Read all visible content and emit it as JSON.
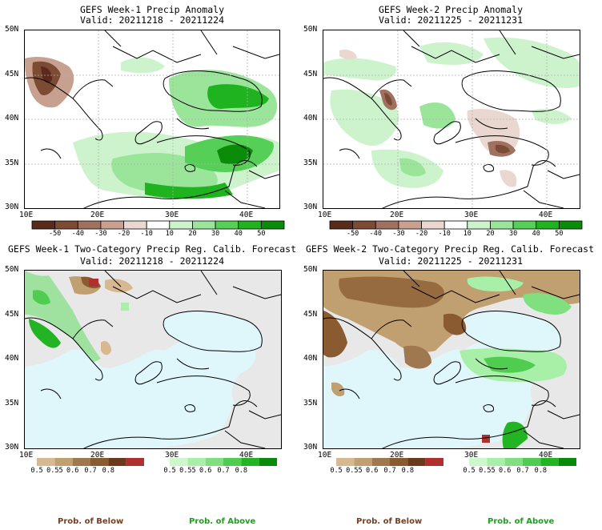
{
  "panels": [
    {
      "id": "w1_anom",
      "title": "GEFS Week-1 Precip Anomaly",
      "valid": "Valid: 20211218 - 20211224",
      "lat_ticks": [
        "50N",
        "45N",
        "40N",
        "35N",
        "30N"
      ],
      "lon_ticks": [
        "10E",
        "20E",
        "30E",
        "40E"
      ],
      "colorbar": {
        "type": "anomaly",
        "labels": [
          "-50",
          "-40",
          "-30",
          "-20",
          "-10",
          "10",
          "20",
          "30",
          "40",
          "50"
        ],
        "colors": [
          "#5a2a1a",
          "#7d4a33",
          "#a07060",
          "#c8a090",
          "#ead8d0",
          "#ffffff",
          "#cdf3cd",
          "#9be59b",
          "#55cf55",
          "#1fb41f",
          "#0a8c0a"
        ]
      }
    },
    {
      "id": "w2_anom",
      "title": "GEFS Week-2 Precip Anomaly",
      "valid": "Valid: 20211225 - 20211231",
      "lat_ticks": [
        "50N",
        "45N",
        "40N",
        "35N",
        "30N"
      ],
      "lon_ticks": [
        "10E",
        "20E",
        "30E",
        "40E"
      ],
      "colorbar": {
        "type": "anomaly",
        "labels": [
          "-50",
          "-40",
          "-30",
          "-20",
          "-10",
          "10",
          "20",
          "30",
          "40",
          "50"
        ],
        "colors": [
          "#5a2a1a",
          "#7d4a33",
          "#a07060",
          "#c8a090",
          "#ead8d0",
          "#ffffff",
          "#cdf3cd",
          "#9be59b",
          "#55cf55",
          "#1fb41f",
          "#0a8c0a"
        ]
      }
    },
    {
      "id": "w1_prob",
      "title": "GEFS Week-1 Two-Category Precip Reg. Calib. Forecast",
      "valid": "Valid: 20211218 - 20211224",
      "lat_ticks": [
        "50N",
        "45N",
        "40N",
        "35N",
        "30N"
      ],
      "lon_ticks": [
        "10E",
        "20E",
        "30E",
        "40E"
      ],
      "below_bar": {
        "labels": [
          "0.5",
          "0.55",
          "0.6",
          "0.7",
          "0.8"
        ],
        "colors": [
          "#d8b890",
          "#c0a070",
          "#a07850",
          "#8a5a30",
          "#6b3a1c",
          "#b03030"
        ]
      },
      "above_bar": {
        "labels": [
          "0.5",
          "0.55",
          "0.6",
          "0.7",
          "0.8"
        ],
        "colors": [
          "#ccf8cc",
          "#a8f0a8",
          "#80e080",
          "#50cc50",
          "#22b422",
          "#0a8a0a"
        ]
      },
      "below_label": "Prob. of Below",
      "above_label": "Prob. of Above"
    },
    {
      "id": "w2_prob",
      "title": "GEFS Week-2 Two-Category Precip Reg. Calib. Forecast",
      "valid": "Valid: 20211225 - 20211231",
      "lat_ticks": [
        "50N",
        "45N",
        "40N",
        "35N",
        "30N"
      ],
      "lon_ticks": [
        "10E",
        "20E",
        "30E",
        "40E"
      ],
      "below_bar": {
        "labels": [
          "0.5",
          "0.55",
          "0.6",
          "0.7",
          "0.8"
        ],
        "colors": [
          "#d8b890",
          "#c0a070",
          "#a07850",
          "#8a5a30",
          "#6b3a1c",
          "#b03030"
        ]
      },
      "above_bar": {
        "labels": [
          "0.5",
          "0.55",
          "0.6",
          "0.7",
          "0.8"
        ],
        "colors": [
          "#ccf8cc",
          "#a8f0a8",
          "#80e080",
          "#50cc50",
          "#22b422",
          "#0a8a0a"
        ]
      },
      "below_label": "Prob. of Below",
      "above_label": "Prob. of Above"
    }
  ],
  "colors": {
    "ocean_prob": "#dff7fb",
    "land_prob": "#e8e8e8",
    "grid": "#b0b0b0",
    "coast": "#000000",
    "below_text": "#7a3e1e",
    "above_text": "#1aa31a"
  }
}
